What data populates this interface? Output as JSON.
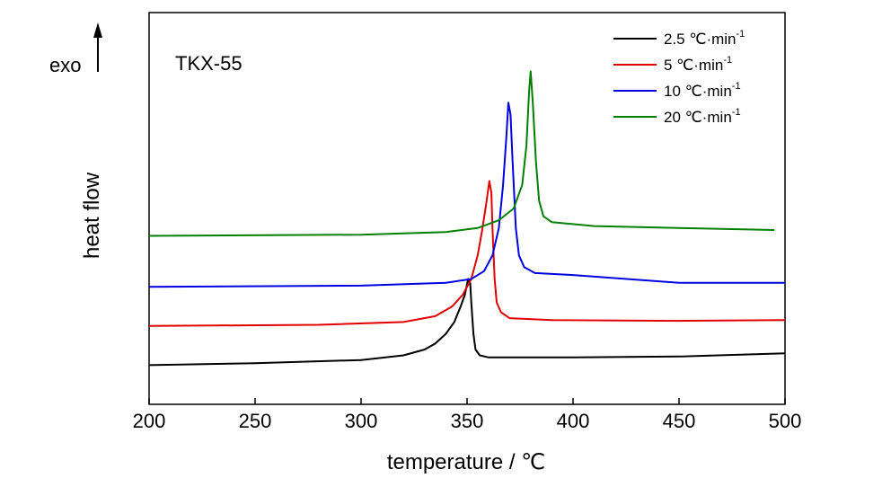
{
  "chart_data": {
    "type": "line",
    "title": "",
    "annotation": "TKX-55",
    "exo_label": "exo",
    "xlabel": "temperature / ℃",
    "ylabel": "heat flow",
    "xlim": [
      200,
      500
    ],
    "ylim": [
      0,
      1
    ],
    "x_ticks": [
      200,
      250,
      300,
      350,
      400,
      450,
      500
    ],
    "x_tick_labels": [
      "200",
      "250",
      "300",
      "350",
      "400",
      "450",
      "500"
    ],
    "y_ticks_shown": false,
    "grid": false,
    "legend_position": "top-right",
    "series": [
      {
        "name": "2.5 ℃·min-1",
        "name_main": "2.5 ℃·min",
        "name_sup": "-1",
        "color": "#000000",
        "points": [
          [
            200,
            0.1
          ],
          [
            250,
            0.105
          ],
          [
            300,
            0.113
          ],
          [
            320,
            0.125
          ],
          [
            330,
            0.14
          ],
          [
            335,
            0.155
          ],
          [
            340,
            0.18
          ],
          [
            344,
            0.21
          ],
          [
            347,
            0.25
          ],
          [
            349,
            0.28
          ],
          [
            350.5,
            0.32
          ],
          [
            351.5,
            0.31
          ],
          [
            352,
            0.26
          ],
          [
            353,
            0.18
          ],
          [
            354,
            0.14
          ],
          [
            356,
            0.125
          ],
          [
            360,
            0.12
          ],
          [
            400,
            0.12
          ],
          [
            450,
            0.122
          ],
          [
            500,
            0.13
          ]
        ]
      },
      {
        "name": "5 ℃·min-1",
        "name_main": "5 ℃·min",
        "name_sup": "-1",
        "color": "#e00000",
        "points": [
          [
            200,
            0.2
          ],
          [
            280,
            0.203
          ],
          [
            320,
            0.21
          ],
          [
            335,
            0.225
          ],
          [
            343,
            0.25
          ],
          [
            348,
            0.28
          ],
          [
            352,
            0.32
          ],
          [
            355,
            0.38
          ],
          [
            357,
            0.44
          ],
          [
            359,
            0.51
          ],
          [
            360.5,
            0.57
          ],
          [
            361.5,
            0.54
          ],
          [
            362,
            0.45
          ],
          [
            363,
            0.32
          ],
          [
            364,
            0.26
          ],
          [
            366,
            0.235
          ],
          [
            370,
            0.22
          ],
          [
            390,
            0.215
          ],
          [
            450,
            0.213
          ],
          [
            500,
            0.215
          ]
        ]
      },
      {
        "name": "10 ℃·min-1",
        "name_main": "10 ℃·min",
        "name_sup": "-1",
        "color": "#0000e0",
        "points": [
          [
            200,
            0.3
          ],
          [
            300,
            0.303
          ],
          [
            340,
            0.31
          ],
          [
            352,
            0.32
          ],
          [
            358,
            0.34
          ],
          [
            362,
            0.38
          ],
          [
            365,
            0.45
          ],
          [
            367,
            0.56
          ],
          [
            368.5,
            0.68
          ],
          [
            369.5,
            0.77
          ],
          [
            370.5,
            0.74
          ],
          [
            371.5,
            0.62
          ],
          [
            373,
            0.45
          ],
          [
            374.5,
            0.38
          ],
          [
            377,
            0.35
          ],
          [
            382,
            0.335
          ],
          [
            400,
            0.33
          ],
          [
            450,
            0.31
          ],
          [
            500,
            0.31
          ]
        ]
      },
      {
        "name": "20 ℃·min-1",
        "name_main": "20 ℃·min",
        "name_sup": "-1",
        "color": "#008000",
        "points": [
          [
            200,
            0.43
          ],
          [
            300,
            0.433
          ],
          [
            340,
            0.44
          ],
          [
            355,
            0.45
          ],
          [
            365,
            0.47
          ],
          [
            372,
            0.5
          ],
          [
            376,
            0.56
          ],
          [
            378,
            0.66
          ],
          [
            379.3,
            0.8
          ],
          [
            380,
            0.85
          ],
          [
            381,
            0.77
          ],
          [
            382.5,
            0.62
          ],
          [
            384,
            0.52
          ],
          [
            386,
            0.48
          ],
          [
            390,
            0.465
          ],
          [
            410,
            0.455
          ],
          [
            450,
            0.45
          ],
          [
            495,
            0.445
          ]
        ]
      }
    ]
  }
}
